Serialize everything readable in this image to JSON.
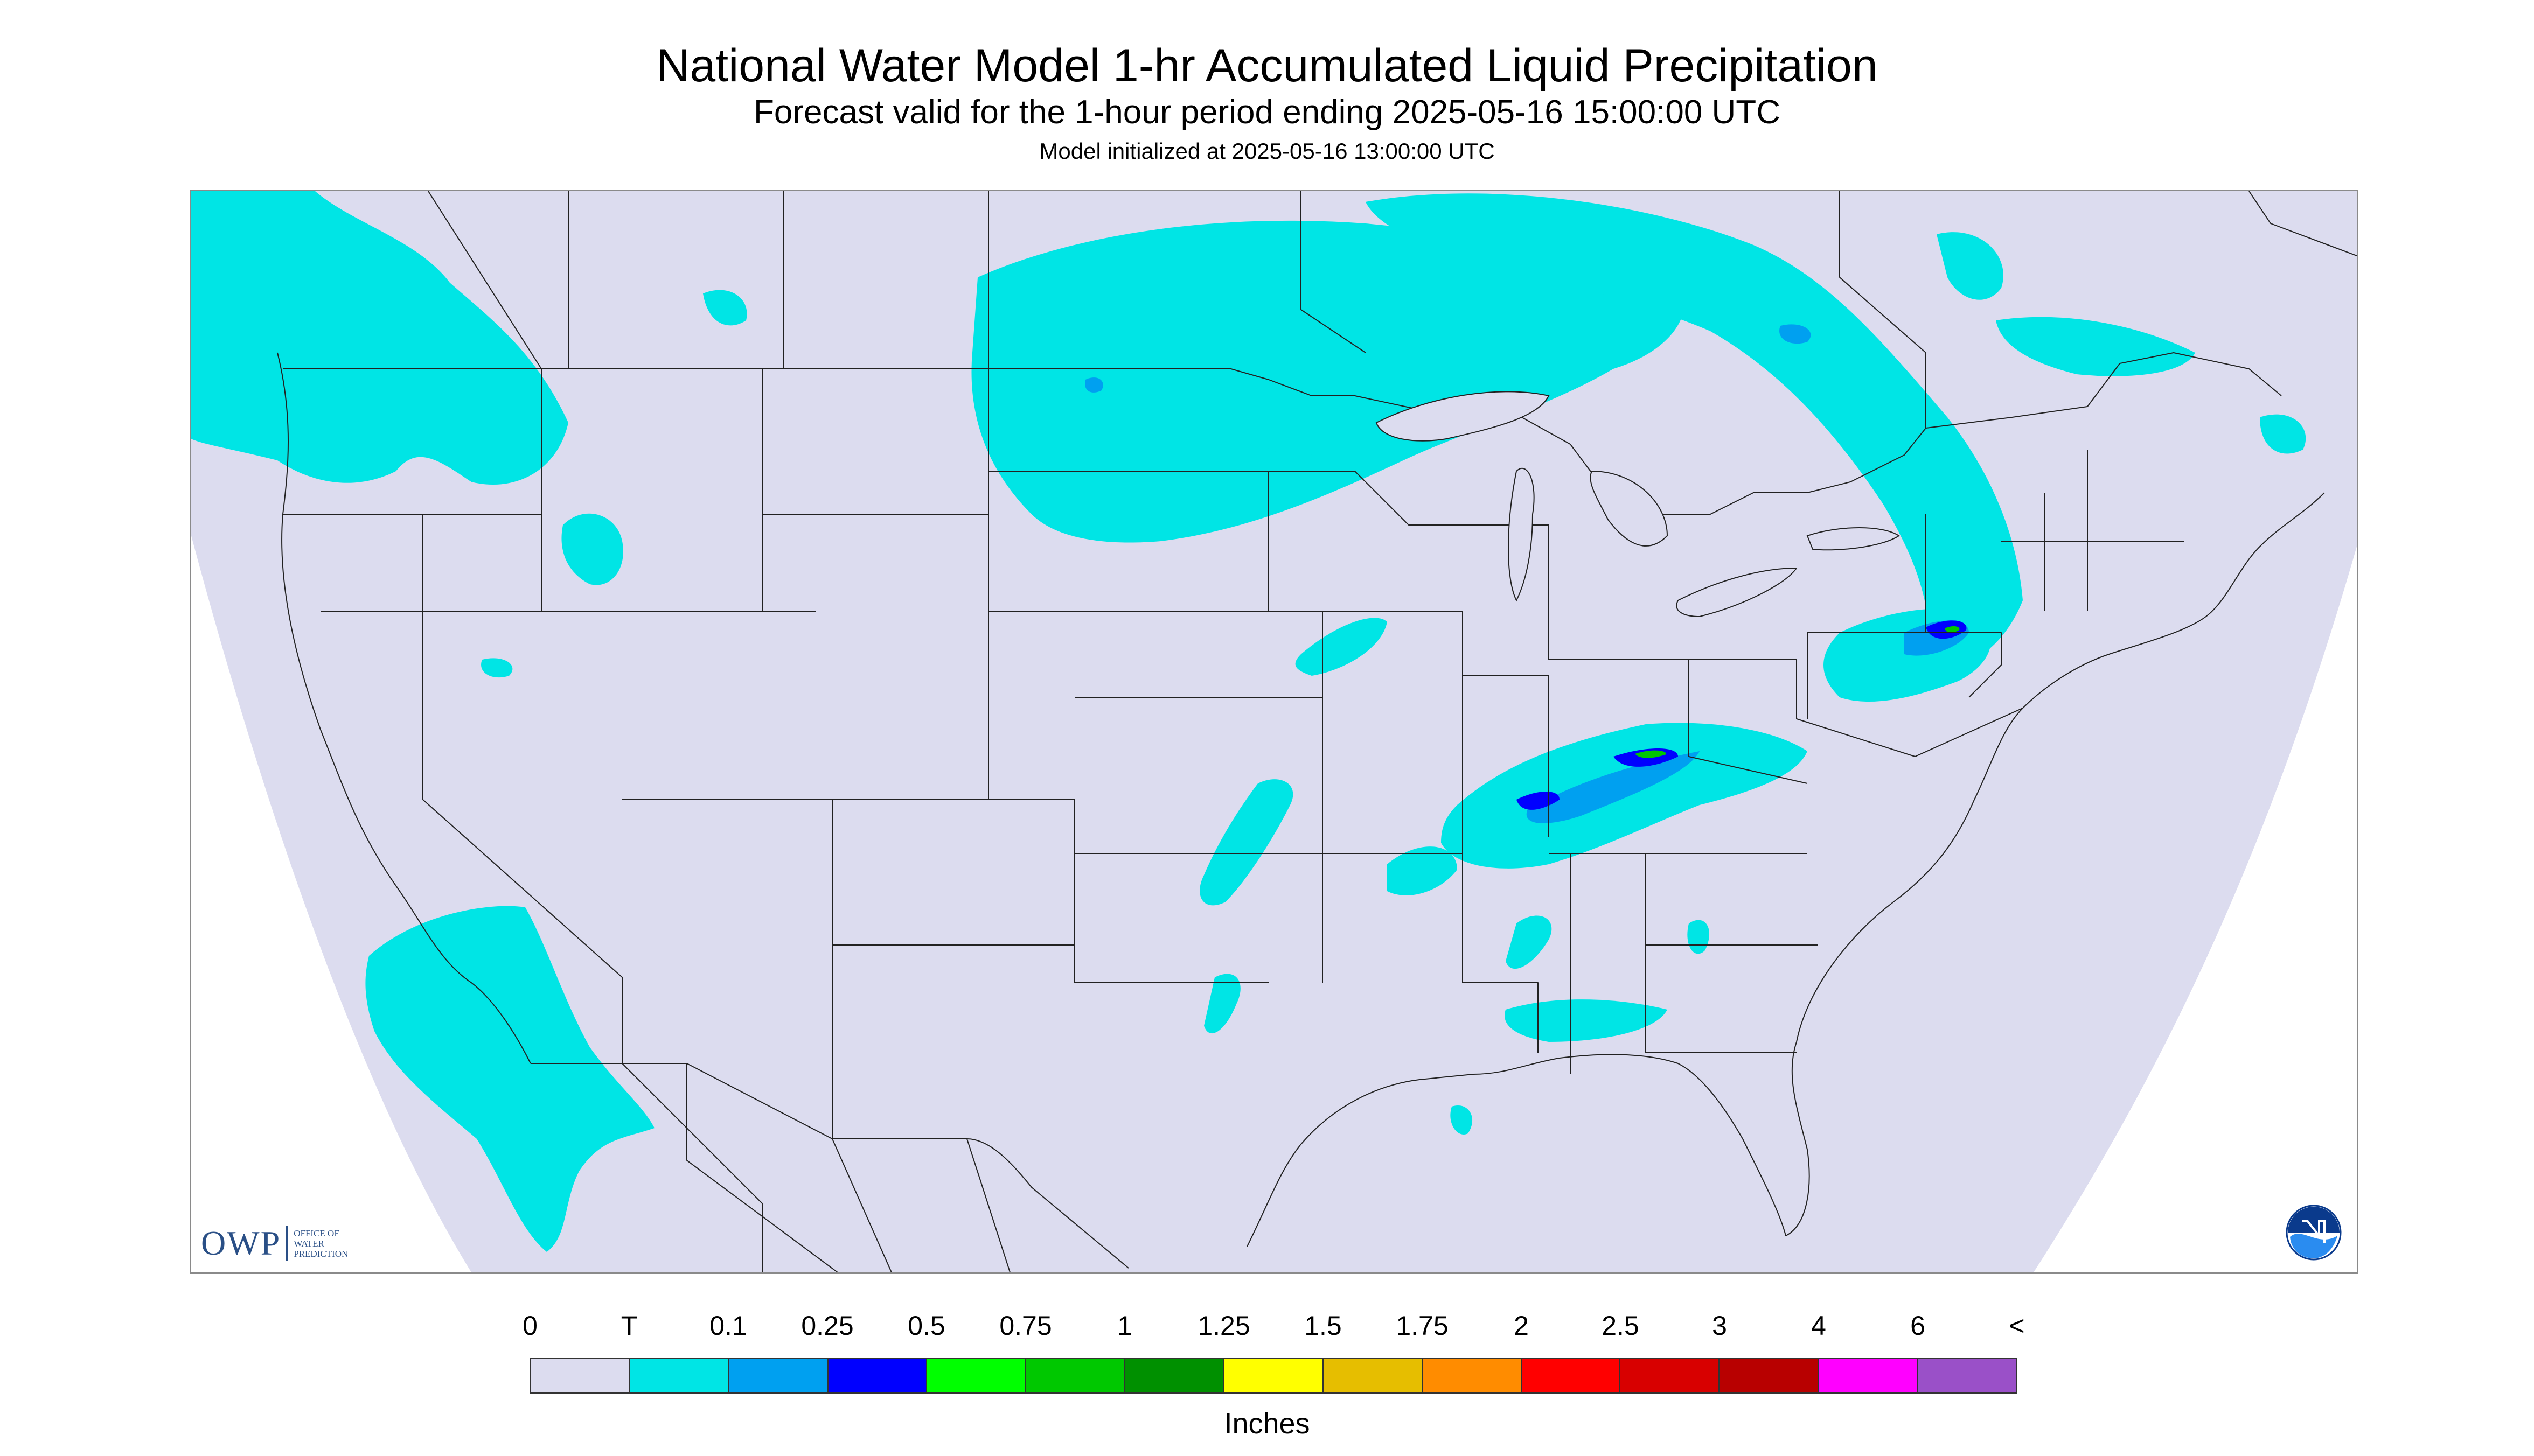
{
  "titles": {
    "main": "National Water Model 1-hr Accumulated Liquid Precipitation",
    "forecast": "Forecast valid for the 1-hour period ending 2025-05-16 15:00:00 UTC",
    "init": "Model initialized at 2025-05-16 13:00:00 UTC"
  },
  "logos": {
    "owp_mark": "OWP",
    "owp_text": "OFFICE OF WATER PREDICTION",
    "noaa": "NOAA"
  },
  "legend": {
    "ticks": [
      "0",
      "T",
      "0.1",
      "0.25",
      "0.5",
      "0.75",
      "1",
      "1.25",
      "1.5",
      "1.75",
      "2",
      "2.5",
      "3",
      "4",
      "6",
      "<"
    ],
    "colors": [
      "#dcdcef",
      "#00e5e5",
      "#00a0f0",
      "#0000ff",
      "#00ff00",
      "#00c800",
      "#009000",
      "#ffff00",
      "#e6be00",
      "#ff8c00",
      "#ff0000",
      "#d80000",
      "#b80000",
      "#ff00ff",
      "#9a50c8"
    ],
    "units": "Inches"
  },
  "colors": {
    "domain_background": "#dcdcef",
    "trace": "#00e5e5",
    "light": "#00a0f0",
    "moderate": "#0000ff",
    "heavy": "#00c800",
    "boundary": "#222222"
  }
}
